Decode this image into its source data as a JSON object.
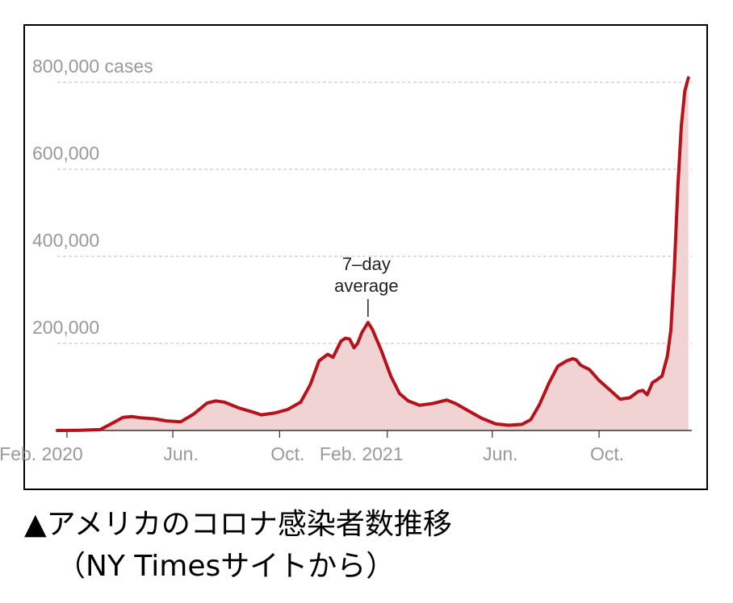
{
  "caption": {
    "line1": "▲アメリカのコロナ感染者数推移",
    "line2": "（NY Timesサイトから）"
  },
  "colors": {
    "line": "#b5121b",
    "fill": "#f2d3d3",
    "grid": "#cccccc",
    "tick_text": "#999999"
  },
  "chart_data": {
    "type": "area",
    "title": "",
    "xlabel": "",
    "ylabel": "",
    "y_tick_labels": [
      "200,000",
      "400,000",
      "600,000",
      "800,000 cases"
    ],
    "y_ticks": [
      200000,
      400000,
      600000,
      800000
    ],
    "ylim": [
      0,
      820000
    ],
    "xlim": [
      "2020-01-21",
      "2022-01-15"
    ],
    "x_ticks": [
      {
        "date": "2020-02-01",
        "label": "Feb. 2020"
      },
      {
        "date": "2020-06-01",
        "label": "Jun."
      },
      {
        "date": "2020-10-01",
        "label": "Oct."
      },
      {
        "date": "2021-02-01",
        "label": "Feb. 2021"
      },
      {
        "date": "2021-06-01",
        "label": "Jun."
      },
      {
        "date": "2021-10-01",
        "label": "Oct."
      }
    ],
    "grid": true,
    "annotation": {
      "lines": [
        "7–day",
        "average"
      ],
      "date": "2021-01-10",
      "value": 250000
    },
    "series": [
      {
        "x": [
          "2020-01-21",
          "2020-02-15",
          "2020-03-10",
          "2020-03-25",
          "2020-04-05",
          "2020-04-15",
          "2020-04-25",
          "2020-05-10",
          "2020-05-25",
          "2020-06-10",
          "2020-06-25",
          "2020-07-10",
          "2020-07-20",
          "2020-07-30",
          "2020-08-15",
          "2020-09-01",
          "2020-09-10",
          "2020-09-25",
          "2020-10-10",
          "2020-10-25",
          "2020-11-05",
          "2020-11-15",
          "2020-11-25",
          "2020-12-01",
          "2020-12-10",
          "2020-12-15",
          "2020-12-20",
          "2020-12-25",
          "2020-12-29",
          "2021-01-03",
          "2021-01-10",
          "2021-01-15",
          "2021-01-25",
          "2021-02-05",
          "2021-02-15",
          "2021-02-25",
          "2021-03-10",
          "2021-03-25",
          "2021-04-10",
          "2021-04-20",
          "2021-05-05",
          "2021-05-20",
          "2021-06-05",
          "2021-06-20",
          "2021-07-05",
          "2021-07-15",
          "2021-07-25",
          "2021-08-05",
          "2021-08-15",
          "2021-08-25",
          "2021-09-01",
          "2021-09-05",
          "2021-09-10",
          "2021-09-20",
          "2021-10-01",
          "2021-10-15",
          "2021-10-25",
          "2021-11-05",
          "2021-11-15",
          "2021-11-20",
          "2021-11-25",
          "2021-12-01",
          "2021-12-05",
          "2021-12-12",
          "2021-12-18",
          "2021-12-22",
          "2021-12-26",
          "2021-12-30",
          "2022-01-03",
          "2022-01-07",
          "2022-01-11"
        ],
        "values": [
          0,
          500,
          2000,
          18000,
          30000,
          32000,
          29000,
          27000,
          22000,
          20000,
          38000,
          63000,
          68000,
          65000,
          52000,
          42000,
          36000,
          40000,
          48000,
          65000,
          105000,
          160000,
          175000,
          168000,
          205000,
          212000,
          210000,
          190000,
          200000,
          225000,
          248000,
          232000,
          185000,
          125000,
          85000,
          68000,
          58000,
          62000,
          70000,
          62000,
          45000,
          28000,
          15000,
          12000,
          14000,
          25000,
          60000,
          110000,
          148000,
          160000,
          165000,
          162000,
          150000,
          140000,
          115000,
          90000,
          72000,
          75000,
          90000,
          92000,
          82000,
          110000,
          115000,
          125000,
          170000,
          230000,
          370000,
          560000,
          700000,
          780000,
          810000
        ]
      }
    ]
  }
}
